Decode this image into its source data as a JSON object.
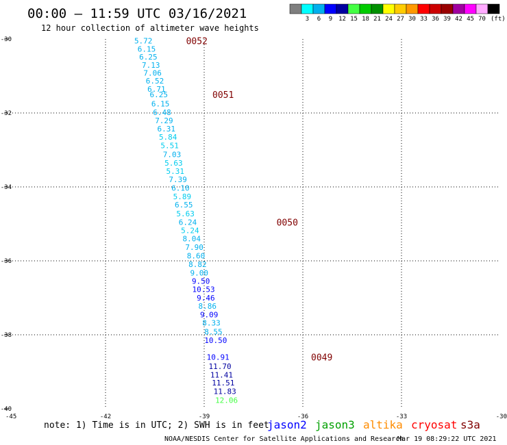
{
  "header": {
    "title": "00:00 – 11:59 UTC 03/16/2021",
    "subtitle": "12 hour collection of altimeter wave heights"
  },
  "colorbar": {
    "unit": "(ft)",
    "swatches": [
      {
        "color": "#7f7f7f",
        "label": ""
      },
      {
        "color": "#00ffff",
        "label": "3"
      },
      {
        "color": "#00b0ee",
        "label": "6"
      },
      {
        "color": "#0000ff",
        "label": "9"
      },
      {
        "color": "#0000a0",
        "label": "12"
      },
      {
        "color": "#44ff44",
        "label": "15"
      },
      {
        "color": "#00cc00",
        "label": "18"
      },
      {
        "color": "#009000",
        "label": "21"
      },
      {
        "color": "#ffff00",
        "label": "24"
      },
      {
        "color": "#ffcc00",
        "label": "27"
      },
      {
        "color": "#ff9900",
        "label": "30"
      },
      {
        "color": "#ff0000",
        "label": "33"
      },
      {
        "color": "#cc0000",
        "label": "36"
      },
      {
        "color": "#990000",
        "label": "39"
      },
      {
        "color": "#a000a0",
        "label": "42"
      },
      {
        "color": "#ff00ff",
        "label": "45"
      },
      {
        "color": "#ffaaff",
        "label": "70"
      },
      {
        "color": "#000000",
        "label": ""
      }
    ]
  },
  "footer": {
    "note": "note: 1) Time is in UTC; 2) SWH is in feet",
    "credit": "NOAA/NESDIS Center for Satellite Applications and Research",
    "timestamp": "Mar 19 08:29:22 UTC 2021"
  },
  "legend": [
    {
      "name": "jason2",
      "color": "#0000ff"
    },
    {
      "name": "jason3",
      "color": "#00a000"
    },
    {
      "name": "altika",
      "color": "#ff8c00"
    },
    {
      "name": "cryosat",
      "color": "#ff0000"
    },
    {
      "name": "s3a",
      "color": "#800000"
    }
  ],
  "chart_data": {
    "type": "scatter",
    "xlim": [
      -45,
      -30
    ],
    "ylim": [
      -40,
      -30
    ],
    "xticks": [
      -45,
      -42,
      -39,
      -36,
      -33,
      -30
    ],
    "xtick_labels": [
      "-45",
      "-42",
      "-39",
      "-36",
      "-33",
      "-30"
    ],
    "yticks": [
      -30,
      -32,
      -34,
      -36,
      -38,
      -40
    ],
    "ytick_labels": [
      "-30",
      "-32",
      "-34",
      "-36",
      "-38",
      "-40"
    ],
    "grid": true,
    "time_label_color": "#800000",
    "time_labels": [
      {
        "text": "0052",
        "x": -39.55,
        "y": -30.05
      },
      {
        "text": "0051",
        "x": -38.75,
        "y": -31.5
      },
      {
        "text": "0050",
        "x": -36.8,
        "y": -34.95
      },
      {
        "text": "0049",
        "x": -35.75,
        "y": -38.6
      }
    ],
    "points": [
      {
        "text": "5.72",
        "x": -40.85,
        "y": -30.05,
        "color": "#00b0ee"
      },
      {
        "text": "6.15",
        "x": -40.75,
        "y": -30.27,
        "color": "#00b0ee"
      },
      {
        "text": "6.25",
        "x": -40.7,
        "y": -30.48,
        "color": "#00b0ee"
      },
      {
        "text": "7.13",
        "x": -40.62,
        "y": -30.7,
        "color": "#00b0ee"
      },
      {
        "text": "7.06",
        "x": -40.57,
        "y": -30.92,
        "color": "#00b0ee"
      },
      {
        "text": "6.52",
        "x": -40.5,
        "y": -31.13,
        "color": "#00b0ee"
      },
      {
        "text": "6.71",
        "x": -40.45,
        "y": -31.35,
        "color": "#00b0ee"
      },
      {
        "text": "6.25",
        "x": -40.38,
        "y": -31.5,
        "color": "#00b0ee"
      },
      {
        "text": "6.15",
        "x": -40.33,
        "y": -31.75,
        "color": "#00b0ee"
      },
      {
        "text": "6.48",
        "x": -40.28,
        "y": -31.98,
        "color": "#00b0ee"
      },
      {
        "text": "7.29",
        "x": -40.22,
        "y": -32.2,
        "color": "#00b0ee"
      },
      {
        "text": "6.31",
        "x": -40.15,
        "y": -32.43,
        "color": "#00b0ee"
      },
      {
        "text": "5.84",
        "x": -40.1,
        "y": -32.65,
        "color": "#00ccee"
      },
      {
        "text": "5.51",
        "x": -40.05,
        "y": -32.88,
        "color": "#00ccee"
      },
      {
        "text": "7.03",
        "x": -39.98,
        "y": -33.12,
        "color": "#00b0ee"
      },
      {
        "text": "5.63",
        "x": -39.93,
        "y": -33.35,
        "color": "#00ccee"
      },
      {
        "text": "5.31",
        "x": -39.88,
        "y": -33.57,
        "color": "#00ccee"
      },
      {
        "text": "7.39",
        "x": -39.8,
        "y": -33.8,
        "color": "#00b0ee"
      },
      {
        "text": "6.10",
        "x": -39.72,
        "y": -34.03,
        "color": "#00b0ee"
      },
      {
        "text": "5.89",
        "x": -39.67,
        "y": -34.26,
        "color": "#00ccee"
      },
      {
        "text": "6.55",
        "x": -39.62,
        "y": -34.48,
        "color": "#00b0ee"
      },
      {
        "text": "5.63",
        "x": -39.57,
        "y": -34.72,
        "color": "#00ccee"
      },
      {
        "text": "6.24",
        "x": -39.5,
        "y": -34.95,
        "color": "#00b0ee"
      },
      {
        "text": "5.24",
        "x": -39.43,
        "y": -35.18,
        "color": "#00ccee"
      },
      {
        "text": "8.04",
        "x": -39.38,
        "y": -35.4,
        "color": "#00b0ee"
      },
      {
        "text": "7.90",
        "x": -39.3,
        "y": -35.63,
        "color": "#00b0ee"
      },
      {
        "text": "8.60",
        "x": -39.25,
        "y": -35.86,
        "color": "#00b0ee"
      },
      {
        "text": "8.82",
        "x": -39.2,
        "y": -36.09,
        "color": "#00b0ee"
      },
      {
        "text": "9.00",
        "x": -39.15,
        "y": -36.32,
        "color": "#00b0ee"
      },
      {
        "text": "9.50",
        "x": -39.1,
        "y": -36.55,
        "color": "#0000ff"
      },
      {
        "text": "10.53",
        "x": -39.02,
        "y": -36.77,
        "color": "#0000ff"
      },
      {
        "text": "9.46",
        "x": -38.95,
        "y": -37.0,
        "color": "#0000ff"
      },
      {
        "text": "8.86",
        "x": -38.9,
        "y": -37.22,
        "color": "#00b0ee"
      },
      {
        "text": "9.09",
        "x": -38.85,
        "y": -37.45,
        "color": "#0000ff"
      },
      {
        "text": "8.33",
        "x": -38.78,
        "y": -37.68,
        "color": "#00b0ee"
      },
      {
        "text": "8.55",
        "x": -38.72,
        "y": -37.92,
        "color": "#00b0ee"
      },
      {
        "text": "10.50",
        "x": -38.65,
        "y": -38.15,
        "color": "#0000ff"
      },
      {
        "text": "10.91",
        "x": -38.58,
        "y": -38.6,
        "color": "#0000ff"
      },
      {
        "text": "11.70",
        "x": -38.52,
        "y": -38.85,
        "color": "#0000a0"
      },
      {
        "text": "11.41",
        "x": -38.47,
        "y": -39.08,
        "color": "#0000a0"
      },
      {
        "text": "11.51",
        "x": -38.42,
        "y": -39.3,
        "color": "#0000a0"
      },
      {
        "text": "11.83",
        "x": -38.37,
        "y": -39.53,
        "color": "#0000a0"
      },
      {
        "text": "12.06",
        "x": -38.32,
        "y": -39.77,
        "color": "#44ff44"
      }
    ]
  }
}
